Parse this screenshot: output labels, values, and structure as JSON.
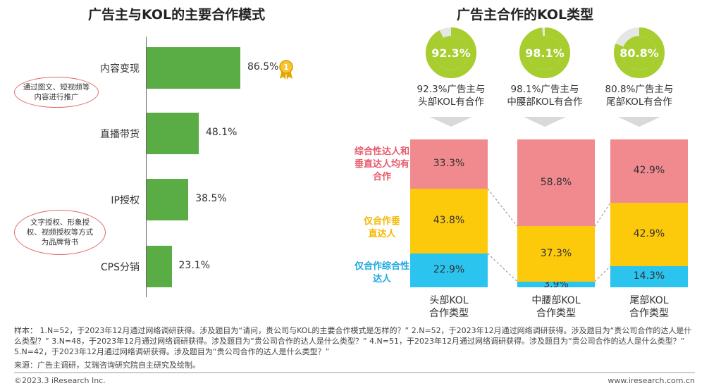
{
  "left": {
    "title": "广告主与KOL的主要合作模式",
    "callout1": "通过图文、短视频等内容进行推广",
    "callout2": "文字授权、形象授权、视频授权等方式为品牌背书",
    "medal_number": "1"
  },
  "right": {
    "title": "广告主合作的KOL类型",
    "donuts": [
      {
        "value_label": "92.3%",
        "desc": "92.3%广告主与头部KOL有合作"
      },
      {
        "value_label": "98.1%",
        "desc": "98.1%广告主与中腰部KOL有合作"
      },
      {
        "value_label": "80.8%",
        "desc": "80.8%广告主与尾部KOL有合作"
      }
    ],
    "category_labels": [
      {
        "text": "综合性达人和垂直达人均有合作",
        "color": "#e8596b"
      },
      {
        "text": "仅合作垂直达人",
        "color": "#f5b800"
      },
      {
        "text": "仅合作综合性达人",
        "color": "#1aa8e0"
      }
    ]
  },
  "colors": {
    "bar_green": "#5aac45",
    "donut_green": "#a7cd2e",
    "donut_track": "#e6e6e6",
    "seg_pink": "#f08a8e",
    "seg_yellow": "#fdc90b",
    "seg_blue": "#2bc4ee"
  },
  "chart_data": [
    {
      "type": "bar",
      "orientation": "horizontal",
      "title": "广告主与KOL的主要合作模式",
      "categories": [
        "内容变现",
        "直播带货",
        "IP授权",
        "CPS分销"
      ],
      "values": [
        86.5,
        48.1,
        38.5,
        23.1
      ],
      "value_labels": [
        "86.5%",
        "48.1%",
        "38.5%",
        "23.1%"
      ]
    },
    {
      "type": "pie",
      "subtype": "donut",
      "title": "广告主合作的KOL类型",
      "categories": [
        "头部KOL",
        "中腰部KOL",
        "尾部KOL"
      ],
      "values": [
        92.3,
        98.1,
        80.8
      ]
    },
    {
      "type": "bar",
      "subtype": "stacked",
      "categories": [
        "头部KOL合作类型",
        "中腰部KOL合作类型",
        "尾部KOL合作类型"
      ],
      "series": [
        {
          "name": "仅合作综合性达人",
          "values": [
            22.9,
            3.9,
            14.3
          ],
          "labels": [
            "22.9%",
            "3.9%",
            "14.3%"
          ]
        },
        {
          "name": "仅合作垂直达人",
          "values": [
            43.8,
            37.3,
            42.9
          ],
          "labels": [
            "43.8%",
            "37.3%",
            "42.9%"
          ]
        },
        {
          "name": "综合性达人和垂直达人均有合作",
          "values": [
            33.3,
            58.8,
            42.9
          ],
          "labels": [
            "33.3%",
            "58.8%",
            "42.9%"
          ]
        }
      ]
    }
  ],
  "notes": {
    "sample": "样本： 1.N=52，于2023年12月通过网络调研获得。涉及题目为“请问，贵公司与KOL的主要合作模式是怎样的？” 2.N=52，于2023年12月通过网络调研获得。涉及题目为“贵公司合作的达人是什么类型？” 3.N=48，于2023年12月通过网络调研获得。涉及题目为“贵公司合作的达人是什么类型？” 4.N=51，于2023年12月通过网络调研获得。涉及题目为“贵公司合作的达人是什么类型？” 5.N=42，于2023年12月通过网络调研获得。涉及题目为“贵公司合作的达人是什么类型？”",
    "source": "来源：广告主调研，艾瑞咨询研究院自主研究及绘制。"
  },
  "footer": {
    "copyright": "©2023.3 iResearch Inc.",
    "website": "www.iresearch.com.cn"
  }
}
